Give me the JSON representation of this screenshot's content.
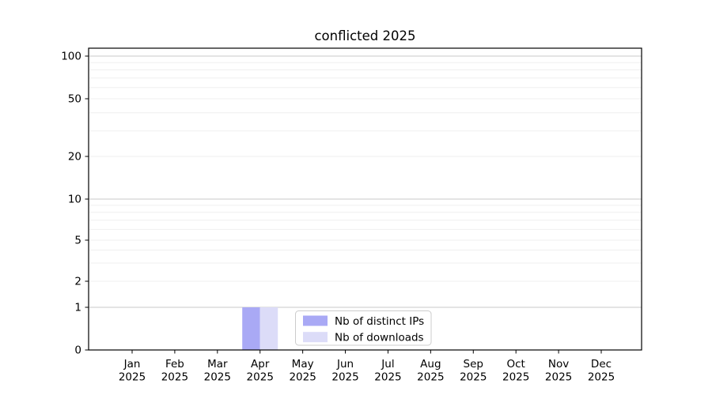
{
  "chart_data": {
    "type": "bar",
    "title": "conflicted 2025",
    "categories": [
      "Jan",
      "Feb",
      "Mar",
      "Apr",
      "May",
      "Jun",
      "Jul",
      "Aug",
      "Sep",
      "Oct",
      "Nov",
      "Dec"
    ],
    "year": "2025",
    "series": [
      {
        "name": "Nb of distinct IPs",
        "color": "#a9a9f5",
        "values": [
          0,
          0,
          0,
          1,
          0,
          0,
          0,
          0,
          0,
          0,
          0,
          0
        ]
      },
      {
        "name": "Nb of downloads",
        "color": "#dcdcf8",
        "values": [
          0,
          0,
          0,
          1,
          0,
          0,
          0,
          0,
          0,
          0,
          0,
          0
        ]
      }
    ],
    "xlabel": "",
    "ylabel": "",
    "yscale": "symlog",
    "ylim": [
      0,
      113
    ],
    "y_ticks": [
      0,
      1,
      2,
      5,
      10,
      20,
      50,
      100
    ],
    "y_major_grid_values": [
      1,
      10,
      100
    ],
    "y_minor_ticks": [
      3,
      4,
      6,
      7,
      8,
      9,
      30,
      40,
      60,
      70,
      80,
      90
    ],
    "grid": true,
    "legend_position": "lower center inside plot"
  },
  "colors": {
    "background": "#ffffff",
    "spine": "#000000",
    "major_grid": "#c9c9c9",
    "minor_grid": "#efefef",
    "legend_border": "#cccccc",
    "legend_background": "#ffffff"
  }
}
